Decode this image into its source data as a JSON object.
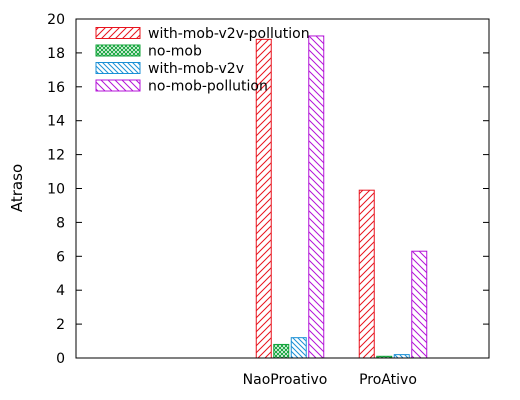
{
  "chart_data": {
    "type": "bar",
    "title": "",
    "xlabel": "",
    "ylabel": "Atraso",
    "ylim": [
      0,
      20
    ],
    "yticks": [
      0,
      2,
      4,
      6,
      8,
      10,
      12,
      14,
      16,
      18,
      20
    ],
    "categories": [
      "NaoProativo",
      "ProAtivo"
    ],
    "grid": false,
    "legend_position": "top-left",
    "series": [
      {
        "name": "with-mob-v2v-pollution",
        "values": [
          18.8,
          9.9
        ],
        "color": "#e8141e",
        "pattern": "diagonal-up"
      },
      {
        "name": "no-mob",
        "values": [
          0.8,
          0.1
        ],
        "color": "#11a43a",
        "pattern": "crosshatch"
      },
      {
        "name": "with-mob-v2v",
        "values": [
          1.2,
          0.2
        ],
        "color": "#1c90d6",
        "pattern": "diagonal-down"
      },
      {
        "name": "no-mob-pollution",
        "values": [
          19.0,
          6.3
        ],
        "color": "#b415d8",
        "pattern": "diagonal-down-wide"
      }
    ]
  }
}
